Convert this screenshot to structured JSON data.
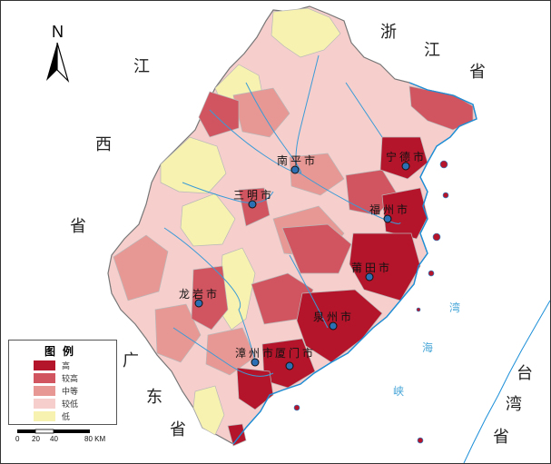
{
  "surrounding_labels": {
    "zhejiang": [
      "浙",
      "江",
      "省"
    ],
    "jiangxi": [
      "江",
      "西",
      "省"
    ],
    "guangdong": [
      "广",
      "东",
      "省"
    ],
    "taiwan": [
      "台",
      "湾",
      "省"
    ],
    "strait": [
      "湾",
      "海",
      "峡"
    ]
  },
  "north_arrow": {
    "label": "N"
  },
  "cities": [
    {
      "name": "南平市"
    },
    {
      "name": "宁德市"
    },
    {
      "name": "三明市"
    },
    {
      "name": "福州市"
    },
    {
      "name": "莆田市"
    },
    {
      "name": "龙岩市"
    },
    {
      "name": "泉州市"
    },
    {
      "name": "漳州市"
    },
    {
      "name": "厦门市"
    }
  ],
  "legend": {
    "title": "图例",
    "items": [
      {
        "label": "高",
        "color": "#b5152b"
      },
      {
        "label": "较高",
        "color": "#d05560"
      },
      {
        "label": "中等",
        "color": "#e89894"
      },
      {
        "label": "较低",
        "color": "#f6cfcd"
      },
      {
        "label": "低",
        "color": "#f7f2b0"
      }
    ]
  },
  "scale_bar": {
    "ticks": [
      "0",
      "20",
      "40",
      "80 KM"
    ]
  },
  "colors": {
    "river": "#3b9bd6",
    "border": "#8d8d8d",
    "coast": "#1c8fd8"
  }
}
